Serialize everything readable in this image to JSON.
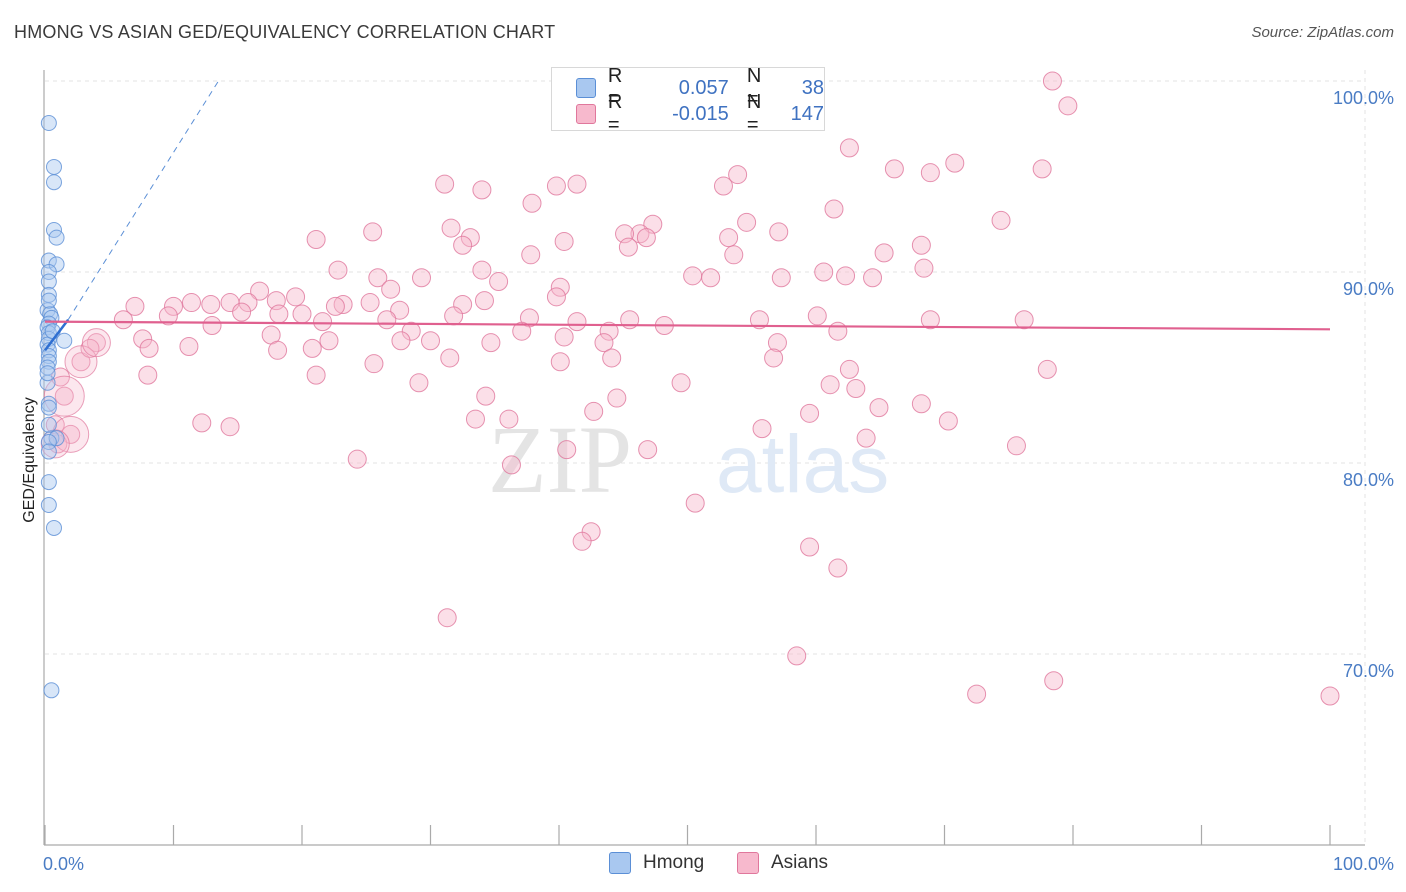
{
  "header": {
    "title": "HMONG VS ASIAN GED/EQUIVALENCY CORRELATION CHART",
    "source": "Source: ZipAtlas.com"
  },
  "watermark": {
    "zip": "ZIP",
    "atlas": "atlas"
  },
  "legend": {
    "r_label": "R =",
    "n_label": "N =",
    "items": [
      {
        "name": "Hmong",
        "r": "0.057",
        "n": "38",
        "fill": "#a9c8f0",
        "stroke": "#5b8fd6"
      },
      {
        "name": "Asians",
        "r": "-0.015",
        "n": "147",
        "fill": "#f7b9cd",
        "stroke": "#e0779c"
      }
    ]
  },
  "chart_data": {
    "type": "scatter",
    "title": "HMONG VS ASIAN GED/EQUIVALENCY CORRELATION CHART",
    "xlabel": "",
    "ylabel": "GED/Equivalency",
    "xlim": [
      0,
      100
    ],
    "ylim": [
      60,
      102
    ],
    "x_tick_labels": [
      "0.0%",
      "100.0%"
    ],
    "y_ticks": [
      70,
      80,
      90,
      100
    ],
    "y_tick_labels": [
      "70.0%",
      "80.0%",
      "90.0%",
      "100.0%"
    ],
    "grid": true,
    "series": [
      {
        "name": "Hmong",
        "color": "#5b8fd6",
        "fill": "#a9c8f0",
        "trend": {
          "x": [
            0.0,
            1.8
          ],
          "y": [
            85.9,
            87.5
          ],
          "dashed_extension_to": [
            13.5,
            100.0
          ]
        },
        "points": [
          [
            0.3,
            97.8
          ],
          [
            0.7,
            95.5
          ],
          [
            0.7,
            94.7
          ],
          [
            0.7,
            92.2
          ],
          [
            0.9,
            91.8
          ],
          [
            0.3,
            90.6
          ],
          [
            0.9,
            90.4
          ],
          [
            0.3,
            90.0
          ],
          [
            0.3,
            89.5
          ],
          [
            0.3,
            88.8
          ],
          [
            0.2,
            88.0
          ],
          [
            0.4,
            87.8
          ],
          [
            0.5,
            87.6
          ],
          [
            0.3,
            87.3
          ],
          [
            0.2,
            87.1
          ],
          [
            0.3,
            86.8
          ],
          [
            0.3,
            86.5
          ],
          [
            0.2,
            86.2
          ],
          [
            0.3,
            85.9
          ],
          [
            1.5,
            86.4
          ],
          [
            0.3,
            85.6
          ],
          [
            0.3,
            85.3
          ],
          [
            0.2,
            85.0
          ],
          [
            0.2,
            84.2
          ],
          [
            0.3,
            83.1
          ],
          [
            0.3,
            82.9
          ],
          [
            0.5,
            81.3
          ],
          [
            0.9,
            81.3
          ],
          [
            0.3,
            81.1
          ],
          [
            0.3,
            80.6
          ],
          [
            0.3,
            79.0
          ],
          [
            0.3,
            77.8
          ],
          [
            0.7,
            76.6
          ],
          [
            0.5,
            68.1
          ],
          [
            0.3,
            82.0
          ],
          [
            0.2,
            84.7
          ],
          [
            0.3,
            88.5
          ],
          [
            0.6,
            86.9
          ]
        ]
      },
      {
        "name": "Asians",
        "color": "#e0779c",
        "fill": "#f7b9cd",
        "trend": {
          "x": [
            0.0,
            100.0
          ],
          "y": [
            87.4,
            87.0
          ]
        },
        "points": [
          [
            78.4,
            100.0
          ],
          [
            79.6,
            98.7
          ],
          [
            62.6,
            96.5
          ],
          [
            77.6,
            95.4
          ],
          [
            66.1,
            95.4
          ],
          [
            68.9,
            95.2
          ],
          [
            70.8,
            95.7
          ],
          [
            53.9,
            95.1
          ],
          [
            41.4,
            94.6
          ],
          [
            39.8,
            94.5
          ],
          [
            52.8,
            94.5
          ],
          [
            34.0,
            94.3
          ],
          [
            31.1,
            94.6
          ],
          [
            37.9,
            93.6
          ],
          [
            61.4,
            93.3
          ],
          [
            74.4,
            92.7
          ],
          [
            54.6,
            92.6
          ],
          [
            47.3,
            92.5
          ],
          [
            31.6,
            92.3
          ],
          [
            25.5,
            92.1
          ],
          [
            46.3,
            92.0
          ],
          [
            57.1,
            92.1
          ],
          [
            45.1,
            92.0
          ],
          [
            46.8,
            91.8
          ],
          [
            53.2,
            91.8
          ],
          [
            33.1,
            91.8
          ],
          [
            21.1,
            91.7
          ],
          [
            40.4,
            91.6
          ],
          [
            32.5,
            91.4
          ],
          [
            45.4,
            91.3
          ],
          [
            68.2,
            91.4
          ],
          [
            65.3,
            91.0
          ],
          [
            37.8,
            90.9
          ],
          [
            53.6,
            90.9
          ],
          [
            22.8,
            90.1
          ],
          [
            34.0,
            90.1
          ],
          [
            68.4,
            90.2
          ],
          [
            60.6,
            90.0
          ],
          [
            62.3,
            89.8
          ],
          [
            64.4,
            89.7
          ],
          [
            50.4,
            89.8
          ],
          [
            51.8,
            89.7
          ],
          [
            57.3,
            89.7
          ],
          [
            25.9,
            89.7
          ],
          [
            29.3,
            89.7
          ],
          [
            35.3,
            89.5
          ],
          [
            40.1,
            89.2
          ],
          [
            26.9,
            89.1
          ],
          [
            16.7,
            89.0
          ],
          [
            39.8,
            88.7
          ],
          [
            18.0,
            88.5
          ],
          [
            19.5,
            88.7
          ],
          [
            25.3,
            88.4
          ],
          [
            32.5,
            88.3
          ],
          [
            34.2,
            88.5
          ],
          [
            23.2,
            88.3
          ],
          [
            15.8,
            88.4
          ],
          [
            11.4,
            88.4
          ],
          [
            12.9,
            88.3
          ],
          [
            14.4,
            88.4
          ],
          [
            10.0,
            88.2
          ],
          [
            22.6,
            88.2
          ],
          [
            18.2,
            87.8
          ],
          [
            27.6,
            88.0
          ],
          [
            20.0,
            87.8
          ],
          [
            15.3,
            87.9
          ],
          [
            9.6,
            87.7
          ],
          [
            7.0,
            88.2
          ],
          [
            6.1,
            87.5
          ],
          [
            26.6,
            87.5
          ],
          [
            21.6,
            87.4
          ],
          [
            31.8,
            87.7
          ],
          [
            13.0,
            87.2
          ],
          [
            37.7,
            87.6
          ],
          [
            41.4,
            87.4
          ],
          [
            45.5,
            87.5
          ],
          [
            55.6,
            87.5
          ],
          [
            48.2,
            87.2
          ],
          [
            60.1,
            87.7
          ],
          [
            68.9,
            87.5
          ],
          [
            76.2,
            87.5
          ],
          [
            43.9,
            86.9
          ],
          [
            37.1,
            86.9
          ],
          [
            28.5,
            86.9
          ],
          [
            61.7,
            86.9
          ],
          [
            57.0,
            86.3
          ],
          [
            7.6,
            86.5
          ],
          [
            17.6,
            86.7
          ],
          [
            22.1,
            86.4
          ],
          [
            27.7,
            86.4
          ],
          [
            40.4,
            86.6
          ],
          [
            30.0,
            86.4
          ],
          [
            34.7,
            86.3
          ],
          [
            43.5,
            86.3
          ],
          [
            8.1,
            86.0
          ],
          [
            11.2,
            86.1
          ],
          [
            18.1,
            85.9
          ],
          [
            20.8,
            86.0
          ],
          [
            31.5,
            85.5
          ],
          [
            25.6,
            85.2
          ],
          [
            40.1,
            85.3
          ],
          [
            44.1,
            85.5
          ],
          [
            56.7,
            85.5
          ],
          [
            62.6,
            84.9
          ],
          [
            78.0,
            84.9
          ],
          [
            8.0,
            84.6
          ],
          [
            21.1,
            84.6
          ],
          [
            29.1,
            84.2
          ],
          [
            49.5,
            84.2
          ],
          [
            61.1,
            84.1
          ],
          [
            63.1,
            83.9
          ],
          [
            44.5,
            83.4
          ],
          [
            34.3,
            83.5
          ],
          [
            59.5,
            82.6
          ],
          [
            64.9,
            82.9
          ],
          [
            68.2,
            83.1
          ],
          [
            42.7,
            82.7
          ],
          [
            70.3,
            82.2
          ],
          [
            33.5,
            82.3
          ],
          [
            36.1,
            82.3
          ],
          [
            12.2,
            82.1
          ],
          [
            14.4,
            81.9
          ],
          [
            55.8,
            81.8
          ],
          [
            75.6,
            80.9
          ],
          [
            63.9,
            81.3
          ],
          [
            36.3,
            79.9
          ],
          [
            50.6,
            77.9
          ],
          [
            42.5,
            76.4
          ],
          [
            61.7,
            74.5
          ],
          [
            59.5,
            75.6
          ],
          [
            40.6,
            80.7
          ],
          [
            46.9,
            80.7
          ],
          [
            41.8,
            75.9
          ],
          [
            31.3,
            71.9
          ],
          [
            58.5,
            69.9
          ],
          [
            72.5,
            67.9
          ],
          [
            78.5,
            68.6
          ],
          [
            100.0,
            67.8
          ],
          [
            2.0,
            81.5
          ],
          [
            1.5,
            83.5
          ],
          [
            2.8,
            85.3
          ],
          [
            4.0,
            86.3
          ],
          [
            1.0,
            81.0
          ],
          [
            0.8,
            82.0
          ],
          [
            3.5,
            86.0
          ],
          [
            1.2,
            84.5
          ],
          [
            24.3,
            80.2
          ]
        ]
      }
    ]
  }
}
